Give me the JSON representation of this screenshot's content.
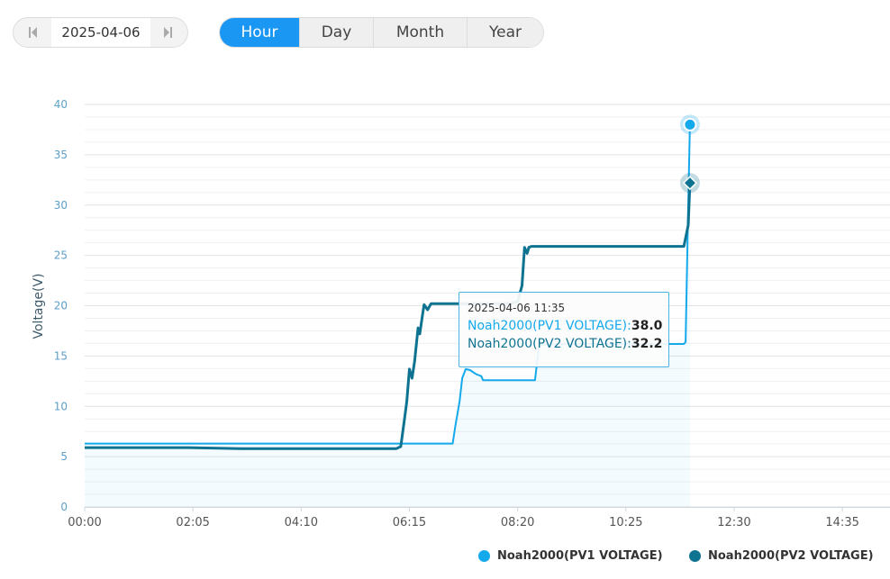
{
  "date_picker": {
    "date": "2025-04-06",
    "prev_icon": "step-back-icon",
    "next_icon": "step-forward-icon"
  },
  "tabs": [
    {
      "label": "Hour",
      "active": true
    },
    {
      "label": "Day",
      "active": false
    },
    {
      "label": "Month",
      "active": false
    },
    {
      "label": "Year",
      "active": false
    }
  ],
  "colors": {
    "pv1": "#14a9ec",
    "pv2": "#0e7391",
    "active_tab": "#1a96f3"
  },
  "tooltip": {
    "date": "2025-04-06 11:35",
    "rows": [
      {
        "label": "Noah2000(PV1 VOLTAGE):",
        "value": "38.0"
      },
      {
        "label": "Noah2000(PV2 VOLTAGE):",
        "value": "32.2"
      }
    ]
  },
  "chart_data": {
    "type": "line",
    "ylabel": "Voltage(V)",
    "xlabel": "",
    "ylim": [
      0,
      40
    ],
    "yticks": [
      "0",
      "5",
      "10",
      "15",
      "20",
      "25",
      "30",
      "35",
      "40"
    ],
    "xticks": [
      "00:00",
      "02:05",
      "04:10",
      "06:15",
      "08:20",
      "10:25",
      "12:30",
      "14:35"
    ],
    "x_range_minutes": [
      0,
      930
    ],
    "grid": true,
    "legend_position": "bottom-right",
    "series": [
      {
        "name": "Noah2000(PV1 VOLTAGE)",
        "color": "#14a9ec",
        "points": [
          [
            0,
            6.3
          ],
          [
            120,
            6.3
          ],
          [
            360,
            6.3
          ],
          [
            410,
            6.3
          ],
          [
            425,
            6.3
          ],
          [
            428,
            8.0
          ],
          [
            433,
            10.5
          ],
          [
            436,
            12.8
          ],
          [
            440,
            13.7
          ],
          [
            445,
            13.6
          ],
          [
            452,
            13.2
          ],
          [
            458,
            13.0
          ],
          [
            460,
            12.6
          ],
          [
            480,
            12.6
          ],
          [
            520,
            12.6
          ],
          [
            524,
            15.5
          ],
          [
            526,
            16.1
          ],
          [
            550,
            16.2
          ],
          [
            640,
            16.2
          ],
          [
            660,
            16.2
          ],
          [
            692,
            16.2
          ],
          [
            694,
            16.4
          ],
          [
            697,
            30.0
          ],
          [
            699,
            38.0
          ]
        ]
      },
      {
        "name": "Noah2000(PV2 VOLTAGE)",
        "color": "#0e7391",
        "points": [
          [
            0,
            5.9
          ],
          [
            120,
            5.9
          ],
          [
            180,
            5.8
          ],
          [
            320,
            5.8
          ],
          [
            360,
            5.8
          ],
          [
            365,
            6.0
          ],
          [
            369,
            8.5
          ],
          [
            372,
            10.5
          ],
          [
            375,
            13.7
          ],
          [
            378,
            12.8
          ],
          [
            381,
            14.5
          ],
          [
            385,
            17.8
          ],
          [
            387,
            17.2
          ],
          [
            390,
            19.0
          ],
          [
            392,
            20.1
          ],
          [
            396,
            19.6
          ],
          [
            400,
            20.2
          ],
          [
            490,
            20.2
          ],
          [
            500,
            20.4
          ],
          [
            505,
            22.0
          ],
          [
            508,
            25.8
          ],
          [
            511,
            25.2
          ],
          [
            513,
            25.8
          ],
          [
            516,
            25.9
          ],
          [
            600,
            25.9
          ],
          [
            660,
            25.9
          ],
          [
            692,
            25.9
          ],
          [
            697,
            28.0
          ],
          [
            699,
            32.2
          ]
        ]
      }
    ]
  }
}
